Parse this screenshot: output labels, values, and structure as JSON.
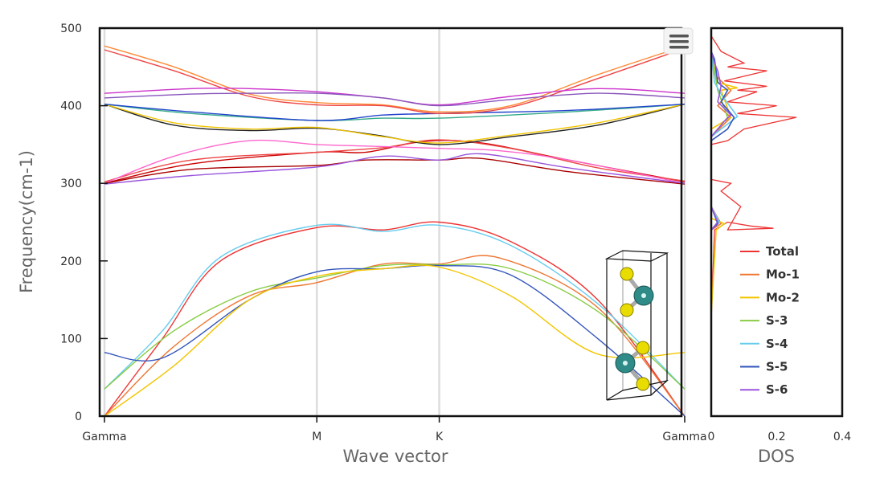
{
  "colors": {
    "Total": "#ee3333",
    "Mo-1": "#ee7733",
    "Mo-2": "#f2c500",
    "S-3": "#88cc44",
    "S-4": "#66ccee",
    "S-5": "#3355bb",
    "S-6": "#9955dd",
    "atom_mo": "#2e8b88",
    "atom_s": "#d9cc00"
  },
  "menu": {
    "icon": "hamburger-menu-icon"
  },
  "chart_data": [
    {
      "type": "line",
      "title": "",
      "xlabel": "Wave vector",
      "ylabel": "Frequency(cm-1)",
      "ylim": [
        0,
        500
      ],
      "yticks": [
        "0",
        "100",
        "200",
        "300",
        "400",
        "500"
      ],
      "x_points": [
        {
          "label": "Gamma",
          "pos": 0
        },
        {
          "label": "M",
          "pos": 0.366
        },
        {
          "label": "K",
          "pos": 0.577
        },
        {
          "label": "Gamma",
          "pos": 1
        }
      ],
      "grid": "vertical lines at high-symmetry points",
      "series": [
        {
          "color": "#ee3333",
          "points": [
            [
              0,
              0
            ],
            [
              0.1,
              100
            ],
            [
              0.2,
              200
            ],
            [
              0.366,
              243
            ],
            [
              0.48,
              240
            ],
            [
              0.577,
              250
            ],
            [
              0.7,
              225
            ],
            [
              0.85,
              150
            ],
            [
              1,
              0
            ]
          ]
        },
        {
          "color": "#66ccee",
          "points": [
            [
              0,
              35
            ],
            [
              0.1,
              110
            ],
            [
              0.2,
              205
            ],
            [
              0.366,
              246
            ],
            [
              0.48,
              238
            ],
            [
              0.577,
              246
            ],
            [
              0.7,
              220
            ],
            [
              0.85,
              145
            ],
            [
              1,
              35
            ]
          ]
        },
        {
          "color": "#ee7733",
          "points": [
            [
              0,
              0
            ],
            [
              0.12,
              90
            ],
            [
              0.25,
              155
            ],
            [
              0.366,
              172
            ],
            [
              0.48,
              196
            ],
            [
              0.577,
              196
            ],
            [
              0.68,
              204
            ],
            [
              0.85,
              140
            ],
            [
              1,
              0
            ]
          ]
        },
        {
          "color": "#88cc44",
          "points": [
            [
              0,
              35
            ],
            [
              0.12,
              110
            ],
            [
              0.25,
              160
            ],
            [
              0.366,
              178
            ],
            [
              0.48,
              194
            ],
            [
              0.577,
              195
            ],
            [
              0.7,
              190
            ],
            [
              0.85,
              135
            ],
            [
              1,
              35
            ]
          ]
        },
        {
          "color": "#3355bb",
          "points": [
            [
              0,
              82
            ],
            [
              0.1,
              75
            ],
            [
              0.25,
              150
            ],
            [
              0.366,
              186
            ],
            [
              0.48,
              190
            ],
            [
              0.577,
              194
            ],
            [
              0.7,
              182
            ],
            [
              0.85,
              100
            ],
            [
              1,
              0
            ]
          ]
        },
        {
          "color": "#f2c500",
          "points": [
            [
              0,
              0
            ],
            [
              0.12,
              65
            ],
            [
              0.25,
              150
            ],
            [
              0.366,
              180
            ],
            [
              0.48,
              190
            ],
            [
              0.577,
              192
            ],
            [
              0.7,
              155
            ],
            [
              0.85,
              80
            ],
            [
              1,
              82
            ]
          ]
        },
        {
          "color": "#cc0000",
          "points": [
            [
              0,
              300
            ],
            [
              0.15,
              325
            ],
            [
              0.366,
              340
            ],
            [
              0.45,
              340
            ],
            [
              0.55,
              354
            ],
            [
              0.65,
              352
            ],
            [
              0.8,
              330
            ],
            [
              1,
              302
            ]
          ]
        },
        {
          "color": "#ee4444",
          "points": [
            [
              0,
              302
            ],
            [
              0.15,
              330
            ],
            [
              0.366,
              340
            ],
            [
              0.48,
              346
            ],
            [
              0.577,
              356
            ],
            [
              0.7,
              345
            ],
            [
              0.85,
              320
            ],
            [
              1,
              303
            ]
          ]
        },
        {
          "color": "#ff66cc",
          "points": [
            [
              0,
              300
            ],
            [
              0.12,
              335
            ],
            [
              0.25,
              355
            ],
            [
              0.366,
              350
            ],
            [
              0.45,
              348
            ],
            [
              0.577,
              345
            ],
            [
              0.68,
              342
            ],
            [
              0.8,
              330
            ],
            [
              1,
              300
            ]
          ]
        },
        {
          "color": "#aa0000",
          "points": [
            [
              0,
              300
            ],
            [
              0.15,
              318
            ],
            [
              0.366,
              323
            ],
            [
              0.45,
              330
            ],
            [
              0.577,
              330
            ],
            [
              0.65,
              332
            ],
            [
              0.8,
              315
            ],
            [
              1,
              299
            ]
          ]
        },
        {
          "color": "#9955dd",
          "points": [
            [
              0,
              299
            ],
            [
              0.15,
              310
            ],
            [
              0.366,
              321
            ],
            [
              0.48,
              335
            ],
            [
              0.577,
              330
            ],
            [
              0.65,
              338
            ],
            [
              0.8,
              320
            ],
            [
              1,
              300
            ]
          ]
        },
        {
          "color": "#222222",
          "points": [
            [
              0,
              402
            ],
            [
              0.12,
              375
            ],
            [
              0.25,
              368
            ],
            [
              0.366,
              371
            ],
            [
              0.47,
              362
            ],
            [
              0.577,
              350
            ],
            [
              0.7,
              360
            ],
            [
              0.85,
              375
            ],
            [
              1,
              402
            ]
          ]
        },
        {
          "color": "#f2c500",
          "points": [
            [
              0,
              402
            ],
            [
              0.12,
              378
            ],
            [
              0.25,
              370
            ],
            [
              0.366,
              372
            ],
            [
              0.48,
              360
            ],
            [
              0.577,
              352
            ],
            [
              0.7,
              362
            ],
            [
              0.85,
              378
            ],
            [
              1,
              402
            ]
          ]
        },
        {
          "color": "#33aa88",
          "points": [
            [
              0,
              402
            ],
            [
              0.15,
              390
            ],
            [
              0.366,
              381
            ],
            [
              0.48,
              384
            ],
            [
              0.577,
              384
            ],
            [
              0.8,
              392
            ],
            [
              1,
              402
            ]
          ]
        },
        {
          "color": "#2244cc",
          "points": [
            [
              0,
              402
            ],
            [
              0.15,
              392
            ],
            [
              0.366,
              381
            ],
            [
              0.48,
              388
            ],
            [
              0.577,
              390
            ],
            [
              0.8,
              394
            ],
            [
              1,
              402
            ]
          ]
        },
        {
          "color": "#ff8833",
          "points": [
            [
              0,
              477
            ],
            [
              0.12,
              450
            ],
            [
              0.25,
              415
            ],
            [
              0.366,
              404
            ],
            [
              0.48,
              401
            ],
            [
              0.577,
              392
            ],
            [
              0.7,
              400
            ],
            [
              0.85,
              440
            ],
            [
              1,
              477
            ]
          ]
        },
        {
          "color": "#ee4444",
          "points": [
            [
              0,
              472
            ],
            [
              0.12,
              445
            ],
            [
              0.25,
              412
            ],
            [
              0.366,
              401
            ],
            [
              0.48,
              400
            ],
            [
              0.577,
              390
            ],
            [
              0.7,
              398
            ],
            [
              0.85,
              435
            ],
            [
              1,
              474
            ]
          ]
        },
        {
          "color": "#cc33cc",
          "points": [
            [
              0,
              416
            ],
            [
              0.15,
              422
            ],
            [
              0.25,
              422
            ],
            [
              0.366,
              418
            ],
            [
              0.48,
              410
            ],
            [
              0.577,
              401
            ],
            [
              0.7,
              412
            ],
            [
              0.85,
              422
            ],
            [
              1,
              416
            ]
          ]
        },
        {
          "color": "#8855bb",
          "points": [
            [
              0,
              410
            ],
            [
              0.15,
              415
            ],
            [
              0.25,
              416
            ],
            [
              0.366,
              416
            ],
            [
              0.48,
              410
            ],
            [
              0.577,
              400
            ],
            [
              0.7,
              408
            ],
            [
              0.85,
              416
            ],
            [
              1,
              410
            ]
          ]
        }
      ]
    },
    {
      "type": "line",
      "xlabel": "DOS",
      "xlim": [
        0,
        0.4
      ],
      "xticks": [
        "0",
        "0.2",
        "0.4"
      ],
      "ylim": [
        0,
        500
      ],
      "legend": "right",
      "series": [
        {
          "name": "Total",
          "points": [
            [
              0,
              125
            ],
            [
              0.01,
              240
            ],
            [
              0.05,
              250
            ],
            [
              0.12,
              245
            ],
            [
              0.19,
              242
            ],
            [
              0.05,
              240
            ],
            [
              0.09,
              270
            ],
            [
              0.03,
              290
            ],
            [
              0.06,
              300
            ],
            [
              0.0,
              305
            ],
            [
              0,
              350
            ],
            [
              0.05,
              355
            ],
            [
              0.1,
              370
            ],
            [
              0.26,
              385
            ],
            [
              0.08,
              390
            ],
            [
              0.2,
              400
            ],
            [
              0.05,
              405
            ],
            [
              0.14,
              418
            ],
            [
              0.08,
              420
            ],
            [
              0.17,
              425
            ],
            [
              0.04,
              432
            ],
            [
              0.17,
              445
            ],
            [
              0.05,
              450
            ],
            [
              0.1,
              455
            ],
            [
              0.03,
              470
            ],
            [
              0.0,
              490
            ]
          ]
        },
        {
          "name": "Mo-1",
          "points": [
            [
              0,
              240
            ],
            [
              0.03,
              248
            ],
            [
              0.0,
              270
            ],
            [
              0,
              360
            ],
            [
              0.06,
              385
            ],
            [
              0.02,
              400
            ],
            [
              0.06,
              420
            ],
            [
              0.01,
              440
            ],
            [
              0,
              470
            ]
          ]
        },
        {
          "name": "Mo-2",
          "points": [
            [
              0,
              130
            ],
            [
              0.015,
              240
            ],
            [
              0.04,
              248
            ],
            [
              0.0,
              255
            ],
            [
              0,
              370
            ],
            [
              0.06,
              385
            ],
            [
              0.03,
              420
            ],
            [
              0.08,
              423
            ],
            [
              0.02,
              430
            ],
            [
              0,
              470
            ]
          ]
        },
        {
          "name": "S-3",
          "points": [
            [
              0,
              240
            ],
            [
              0.02,
              250
            ],
            [
              0,
              270
            ],
            [
              0,
              360
            ],
            [
              0.05,
              385
            ],
            [
              0.02,
              420
            ],
            [
              0,
              470
            ]
          ]
        },
        {
          "name": "S-4",
          "points": [
            [
              0,
              240
            ],
            [
              0.025,
              250
            ],
            [
              0,
              270
            ],
            [
              0,
              360
            ],
            [
              0.08,
              386
            ],
            [
              0.03,
              415
            ],
            [
              0.01,
              430
            ],
            [
              0,
              470
            ]
          ]
        },
        {
          "name": "S-5",
          "points": [
            [
              0,
              240
            ],
            [
              0.02,
              248
            ],
            [
              0,
              270
            ],
            [
              0,
              355
            ],
            [
              0.05,
              370
            ],
            [
              0.07,
              385
            ],
            [
              0.03,
              405
            ],
            [
              0.05,
              420
            ],
            [
              0.02,
              430
            ],
            [
              0.01,
              460
            ],
            [
              0,
              470
            ]
          ]
        },
        {
          "name": "S-6",
          "points": [
            [
              0,
              240
            ],
            [
              0.02,
              250
            ],
            [
              0,
              270
            ],
            [
              0,
              360
            ],
            [
              0.04,
              380
            ],
            [
              0.06,
              388
            ],
            [
              0.02,
              405
            ],
            [
              0.03,
              425
            ],
            [
              0.02,
              445
            ],
            [
              0.01,
              455
            ],
            [
              0,
              470
            ]
          ]
        }
      ]
    }
  ]
}
